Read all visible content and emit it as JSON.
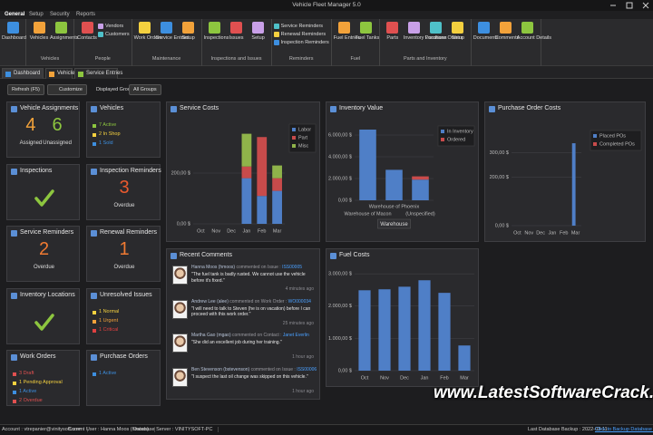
{
  "window": {
    "title": "Vehicle Fleet Manager 5.0"
  },
  "menu_tabs": [
    "General",
    "Setup",
    "Security",
    "Reports"
  ],
  "ribbon": {
    "groups": [
      {
        "buttons": [
          "Dashboard"
        ]
      },
      {
        "label": "Vehicles",
        "buttons": [
          "Vehicles",
          "Assignments"
        ]
      },
      {
        "label": "People",
        "buttons": [
          "Contacts"
        ],
        "small": [
          "Vendors",
          "Customers"
        ]
      },
      {
        "label": "Maintenance",
        "buttons": [
          "Work Orders",
          "Service Entries",
          "Setup"
        ]
      },
      {
        "label": "Inspections and Issues",
        "buttons": [
          "Inspections",
          "Issues",
          "Setup"
        ]
      },
      {
        "label": "Reminders",
        "small": [
          "Service Reminders",
          "Renewal Reminders",
          "Inspection Reminders"
        ]
      },
      {
        "label": "Fuel",
        "buttons": [
          "Fuel Entries",
          "Fuel Tanks"
        ]
      },
      {
        "label": "Parts and Inventory",
        "buttons": [
          "Parts",
          "Inventory Locations",
          "Purchase Orders",
          "Setup"
        ]
      },
      {
        "buttons": [
          "Documents",
          "Comments",
          "Account Details"
        ]
      }
    ]
  },
  "doc_tabs": [
    "Dashboard",
    "Vehicles",
    "Service Entries"
  ],
  "toolbar": {
    "refresh": "Refresh (F5)",
    "customize": "Customize",
    "group_label": "Displayed Group:",
    "group_value": "All Groups"
  },
  "tiles": [
    {
      "title": "Vehicle Assignments",
      "big": [
        {
          "value": "4",
          "label": "Assigned",
          "color": "#f2a23a"
        },
        {
          "value": "6",
          "label": "Unassigned",
          "color": "#8dc63f"
        }
      ]
    },
    {
      "title": "Vehicles",
      "items": [
        {
          "text": "7 Active",
          "color": "#8dc63f"
        },
        {
          "text": "2 In Shop",
          "color": "#f4d03f"
        },
        {
          "text": "1 Sold",
          "color": "#3d8fe0"
        }
      ]
    },
    {
      "title": "Inspections",
      "check": true
    },
    {
      "title": "Inspection Reminders",
      "big": [
        {
          "value": "3",
          "label": "Overdue",
          "color": "#ea5a2e"
        }
      ]
    },
    {
      "title": "Service Reminders",
      "big": [
        {
          "value": "2",
          "label": "Overdue",
          "color": "#f07a32"
        }
      ]
    },
    {
      "title": "Renewal Reminders",
      "big": [
        {
          "value": "1",
          "label": "Overdue",
          "color": "#f07a32"
        }
      ]
    },
    {
      "title": "Inventory Locations",
      "check": true
    },
    {
      "title": "Unresolved Issues",
      "items": [
        {
          "text": "1 Normal",
          "color": "#f4d03f"
        },
        {
          "text": "1 Urgent",
          "color": "#f2a23a"
        },
        {
          "text": "1 Critical",
          "color": "#e04040"
        }
      ]
    },
    {
      "title": "Work Orders",
      "items": [
        {
          "text": "3 Draft",
          "color": "#e05050"
        },
        {
          "text": "1 Pending Approval",
          "color": "#f4d03f"
        },
        {
          "text": "1 Active",
          "color": "#3d8fe0"
        },
        {
          "text": "2 Overdue",
          "color": "#e05050"
        }
      ]
    },
    {
      "title": "Purchase Orders",
      "items": [
        {
          "text": "1 Active",
          "color": "#3d8fe0"
        }
      ]
    }
  ],
  "chart_data": [
    {
      "type": "bar",
      "stacked": true,
      "title": "Service Costs",
      "categories": [
        "Oct",
        "Nov",
        "Dec",
        "Jan",
        "Feb",
        "Mar"
      ],
      "series": [
        {
          "name": "Labor",
          "color": "#4f7fc7",
          "values": [
            0,
            0,
            0,
            180,
            110,
            130
          ]
        },
        {
          "name": "Part",
          "color": "#c84b4b",
          "values": [
            0,
            0,
            0,
            46,
            232,
            50
          ]
        },
        {
          "name": "Misc",
          "color": "#8fb34a",
          "values": [
            0,
            0,
            0,
            129,
            0,
            50
          ]
        }
      ],
      "ylim": [
        0,
        400
      ],
      "yticks": [
        {
          "value": 0,
          "label": "0,00 $"
        },
        {
          "value": 200,
          "label": "200,00 $"
        }
      ],
      "grid": true,
      "legend": "upper right"
    },
    {
      "type": "bar",
      "stacked": true,
      "title": "Inventory Value",
      "categories": [
        "Warehouse of Macon",
        "Warehouse of Phoenix",
        "(Unspecified)"
      ],
      "x_label": "Warehouse",
      "series": [
        {
          "name": "In Inventory",
          "color": "#4f7fc7",
          "values": [
            6500,
            2800,
            1900
          ]
        },
        {
          "name": "Ordered",
          "color": "#c84b4b",
          "values": [
            0,
            0,
            300
          ]
        }
      ],
      "ylim": [
        0,
        7000
      ],
      "yticks": [
        {
          "value": 0,
          "label": "0,00 $"
        },
        {
          "value": 2000,
          "label": "2.000,00 $"
        },
        {
          "value": 4000,
          "label": "4.000,00 $"
        },
        {
          "value": 6000,
          "label": "6.000,00 $"
        }
      ],
      "grid": true,
      "legend": "upper right"
    },
    {
      "type": "bar",
      "stacked": false,
      "title": "Purchase Order Costs",
      "categories": [
        "Oct",
        "Nov",
        "Dec",
        "Jan",
        "Feb",
        "Mar"
      ],
      "series": [
        {
          "name": "Placed POs",
          "color": "#4f7fc7",
          "values": [
            0,
            0,
            0,
            0,
            0,
            340
          ]
        },
        {
          "name": "Completed POs",
          "color": "#c84b4b",
          "values": [
            0,
            0,
            0,
            0,
            0,
            0
          ]
        }
      ],
      "ylim": [
        0,
        400
      ],
      "yticks": [
        {
          "value": 0,
          "label": "0,00 $"
        },
        {
          "value": 200,
          "label": "200,00 $"
        },
        {
          "value": 300,
          "label": "300,00 $"
        }
      ],
      "grid": true,
      "legend": "upper right"
    },
    {
      "type": "bar",
      "title": "Fuel Costs",
      "categories": [
        "Oct",
        "Nov",
        "Dec",
        "Jan",
        "Feb",
        "Mar"
      ],
      "color": "#4f7fc7",
      "values": [
        2490,
        2520,
        2600,
        2800,
        2410,
        780
      ],
      "ylim": [
        0,
        3200
      ],
      "yticks": [
        {
          "value": 0,
          "label": "0,00 $"
        },
        {
          "value": 1000,
          "label": "1.000,00 $"
        },
        {
          "value": 2000,
          "label": "2.000,00 $"
        },
        {
          "value": 3000,
          "label": "3.000,00 $"
        }
      ],
      "grid": true
    }
  ],
  "comments": {
    "title": "Recent Comments",
    "items": [
      {
        "author": "Hanna Moos (hmoos)",
        "action": "commented on Issue :",
        "link": "ISS00005",
        "text": "\"The fuel tank is badly rusted. We cannot use the vehicle before it's fixed.\"",
        "time": "4 minutes ago"
      },
      {
        "author": "Andrew Lee (alee)",
        "action": "commented on Work Order :",
        "link": "WO000034",
        "text": "\"I will need to talk to Steven (he is on vacation) before I can proceed with this work order.\"",
        "time": "25 minutes ago"
      },
      {
        "author": "Martha Gao (mgao)",
        "action": "commented on Contact :",
        "link": "Janet Everlin",
        "text": "\"She did an excellent job during her training.\"",
        "time": "1 hour ago"
      },
      {
        "author": "Ben Stevenson (bstevenson)",
        "action": "commented on Issue :",
        "link": "ISS00006",
        "text": "\"I suspect the last oil change was skipped on this vehicle.\"",
        "time": "1 hour ago"
      }
    ]
  },
  "status": {
    "left": [
      "Account : vtrepanier@vinitysoft.com",
      "Current User : Hanna Moos (hmoos)",
      "Database Server : VINITYSOFT-PC"
    ],
    "backup": "Last Database Backup : 2022-03-11",
    "backup_link": "Click to Backup Database Now!"
  },
  "watermark": "www.LatestSoftwareCrack.com"
}
